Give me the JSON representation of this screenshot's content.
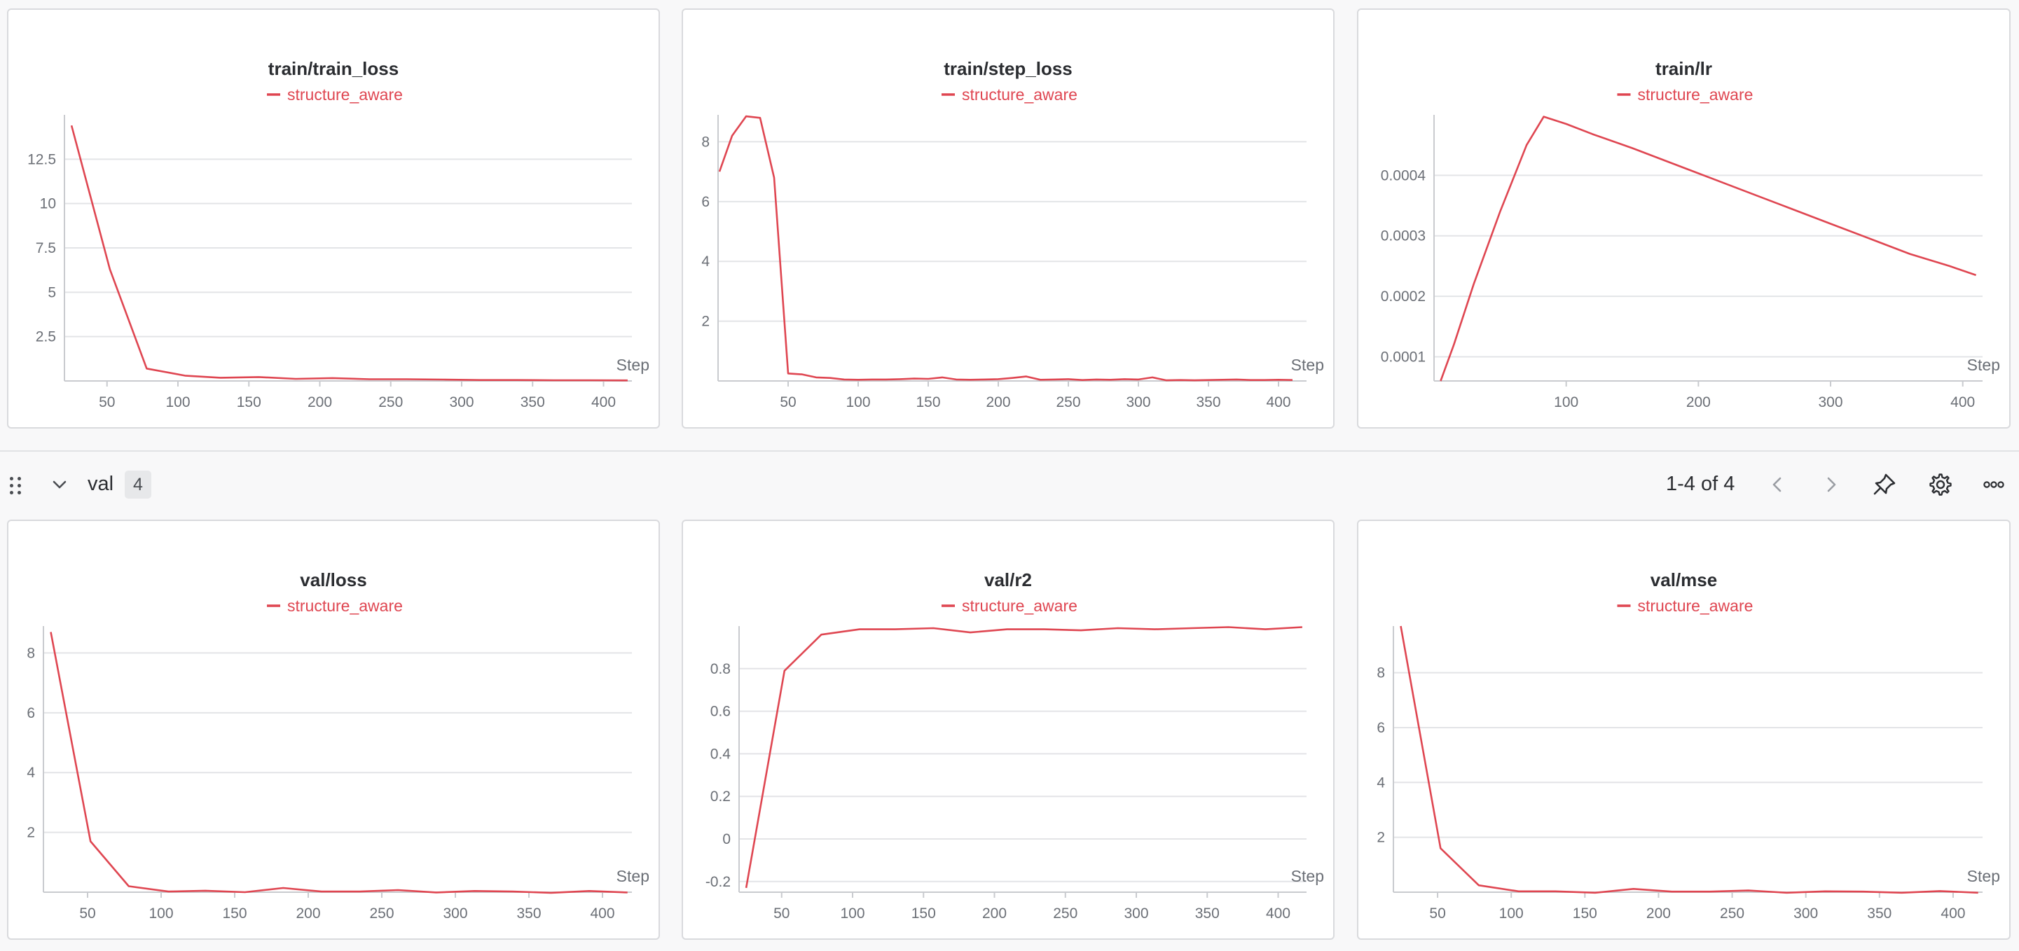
{
  "accent_color": "#df4651",
  "section": {
    "name": "val",
    "count": "4",
    "pagination": "1-4 of 4",
    "icons": [
      "drag-handle-icon",
      "chevron-down-icon",
      "chevron-left-icon",
      "chevron-right-icon",
      "pin-icon",
      "gear-icon",
      "more-horizontal-icon"
    ]
  },
  "panels": [
    {
      "title": "train/train_loss",
      "legend": "structure_aware",
      "xlabel": "Step",
      "chart_data": {
        "type": "line",
        "x": [
          25,
          52,
          78,
          105,
          130,
          157,
          183,
          209,
          235,
          261,
          287,
          313,
          339,
          365,
          391,
          417
        ],
        "series": [
          {
            "name": "structure_aware",
            "values": [
              14.4,
              6.3,
              0.7,
              0.3,
              0.18,
              0.22,
              0.12,
              0.16,
              0.1,
              0.1,
              0.08,
              0.05,
              0.05,
              0.04,
              0.04,
              0.03
            ]
          }
        ],
        "xlim": [
          20,
          420
        ],
        "ylim": [
          0,
          15
        ],
        "xticks": [
          50,
          100,
          150,
          200,
          250,
          300,
          350,
          400
        ],
        "yticks": [
          2.5,
          5,
          7.5,
          10,
          12.5
        ],
        "ytick_labels": [
          "2.5",
          "5",
          "7.5",
          "10",
          "12.5"
        ]
      }
    },
    {
      "title": "train/step_loss",
      "legend": "structure_aware",
      "xlabel": "Step",
      "chart_data": {
        "type": "line",
        "x": [
          1,
          10,
          20,
          30,
          40,
          50,
          60,
          70,
          80,
          90,
          100,
          110,
          120,
          130,
          140,
          150,
          160,
          170,
          180,
          190,
          200,
          210,
          220,
          230,
          240,
          250,
          260,
          270,
          280,
          290,
          300,
          310,
          320,
          330,
          340,
          350,
          360,
          370,
          380,
          390,
          400,
          410
        ],
        "series": [
          {
            "name": "structure_aware",
            "values": [
              7.0,
              8.2,
              8.85,
              8.8,
              6.8,
              0.25,
              0.22,
              0.12,
              0.1,
              0.05,
              0.04,
              0.05,
              0.05,
              0.06,
              0.08,
              0.07,
              0.12,
              0.05,
              0.04,
              0.05,
              0.06,
              0.1,
              0.15,
              0.04,
              0.05,
              0.06,
              0.03,
              0.05,
              0.04,
              0.06,
              0.05,
              0.12,
              0.02,
              0.03,
              0.02,
              0.03,
              0.04,
              0.05,
              0.03,
              0.03,
              0.04,
              0.03
            ]
          }
        ],
        "xlim": [
          0,
          420
        ],
        "ylim": [
          0,
          8.9
        ],
        "xticks": [
          50,
          100,
          150,
          200,
          250,
          300,
          350,
          400
        ],
        "yticks": [
          2,
          4,
          6,
          8
        ],
        "ytick_labels": [
          "2",
          "4",
          "6",
          "8"
        ]
      }
    },
    {
      "title": "train/lr",
      "legend": "structure_aware",
      "xlabel": "Step",
      "chart_data": {
        "type": "line",
        "x": [
          5,
          15,
          30,
          50,
          70,
          83,
          100,
          120,
          150,
          180,
          210,
          240,
          270,
          300,
          330,
          360,
          390,
          410
        ],
        "series": [
          {
            "name": "structure_aware",
            "values": [
              6e-05,
              0.00012,
              0.00022,
              0.00034,
              0.00045,
              0.000497,
              0.000485,
              0.000468,
              0.000445,
              0.00042,
              0.000395,
              0.00037,
              0.000345,
              0.00032,
              0.000295,
              0.00027,
              0.00025,
              0.000235
            ]
          }
        ],
        "xlim": [
          0,
          415
        ],
        "ylim": [
          6e-05,
          0.0005
        ],
        "xticks": [
          100,
          200,
          300,
          400
        ],
        "yticks": [
          0.0001,
          0.0002,
          0.0003,
          0.0004
        ],
        "ytick_labels": [
          "0.0001",
          "0.0002",
          "0.0003",
          "0.0004"
        ]
      }
    },
    {
      "title": "val/loss",
      "legend": "structure_aware",
      "xlabel": "Step",
      "chart_data": {
        "type": "line",
        "x": [
          25,
          52,
          78,
          105,
          130,
          157,
          183,
          209,
          235,
          261,
          287,
          313,
          339,
          365,
          391,
          417
        ],
        "series": [
          {
            "name": "structure_aware",
            "values": [
              8.7,
              1.7,
              0.2,
              0.02,
              0.05,
              0.0,
              0.14,
              0.02,
              0.02,
              0.07,
              -0.01,
              0.04,
              0.02,
              -0.02,
              0.04,
              -0.01
            ]
          }
        ],
        "xlim": [
          20,
          420
        ],
        "ylim": [
          0,
          8.9
        ],
        "xticks": [
          50,
          100,
          150,
          200,
          250,
          300,
          350,
          400
        ],
        "yticks": [
          2,
          4,
          6,
          8
        ],
        "ytick_labels": [
          "2",
          "4",
          "6",
          "8"
        ]
      }
    },
    {
      "title": "val/r2",
      "legend": "structure_aware",
      "xlabel": "Step",
      "chart_data": {
        "type": "line",
        "x": [
          25,
          52,
          78,
          105,
          130,
          157,
          183,
          209,
          235,
          261,
          287,
          313,
          339,
          365,
          391,
          417
        ],
        "series": [
          {
            "name": "structure_aware",
            "values": [
              -0.23,
              0.79,
              0.96,
              0.985,
              0.985,
              0.99,
              0.97,
              0.985,
              0.985,
              0.98,
              0.99,
              0.985,
              0.99,
              0.995,
              0.985,
              0.995
            ]
          }
        ],
        "xlim": [
          20,
          420
        ],
        "ylim": [
          -0.25,
          1.0
        ],
        "xticks": [
          50,
          100,
          150,
          200,
          250,
          300,
          350,
          400
        ],
        "yticks": [
          -0.2,
          0,
          0.2,
          0.4,
          0.6,
          0.8
        ],
        "ytick_labels": [
          "-0.2",
          "0",
          "0.2",
          "0.4",
          "0.6",
          "0.8"
        ]
      }
    },
    {
      "title": "val/mse",
      "legend": "structure_aware",
      "xlabel": "Step",
      "chart_data": {
        "type": "line",
        "x": [
          25,
          52,
          78,
          105,
          130,
          157,
          183,
          209,
          235,
          261,
          287,
          313,
          339,
          365,
          391,
          417
        ],
        "series": [
          {
            "name": "structure_aware",
            "values": [
              9.7,
              1.6,
              0.25,
              0.03,
              0.03,
              -0.02,
              0.12,
              0.02,
              0.02,
              0.06,
              -0.02,
              0.03,
              0.02,
              -0.02,
              0.04,
              -0.02
            ]
          }
        ],
        "xlim": [
          20,
          420
        ],
        "ylim": [
          0,
          9.7
        ],
        "xticks": [
          50,
          100,
          150,
          200,
          250,
          300,
          350,
          400
        ],
        "yticks": [
          2,
          4,
          6,
          8
        ],
        "ytick_labels": [
          "2",
          "4",
          "6",
          "8"
        ]
      }
    }
  ]
}
